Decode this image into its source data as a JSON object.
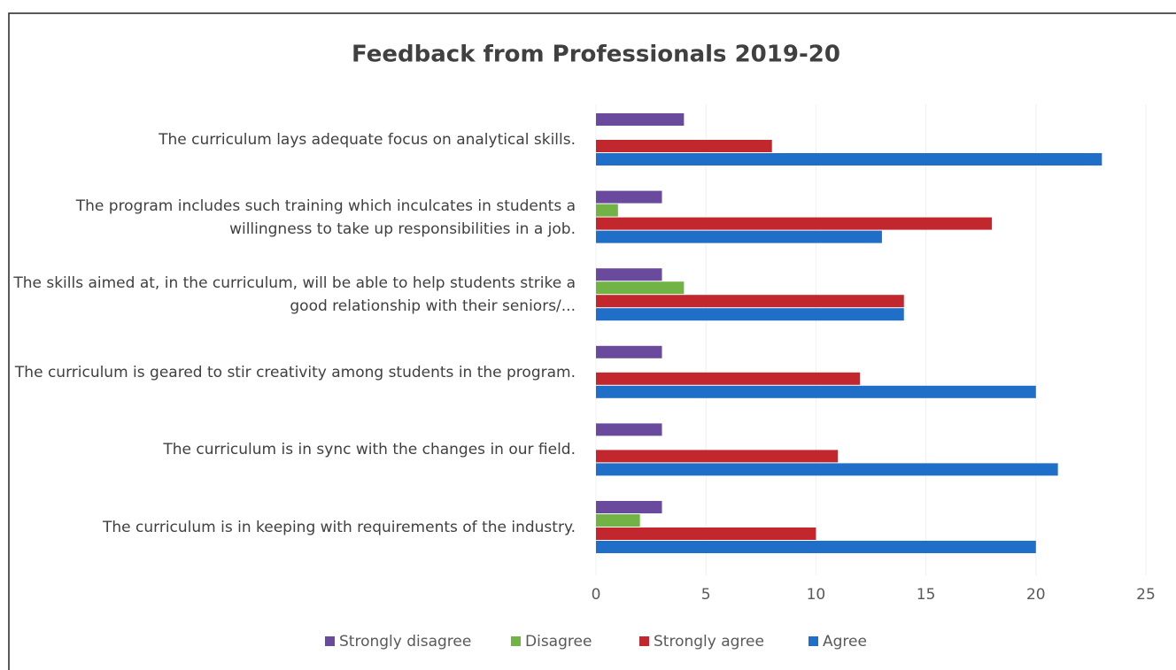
{
  "chart_data": {
    "type": "hbar",
    "title": "Feedback from Professionals 2019-20",
    "categories": [
      "The curriculum lays adequate focus on analytical skills.",
      "The program includes such training which inculcates in students a willingness to take up responsibilities in a job.",
      "The skills aimed at, in the curriculum, will be able to help students strike a good relationship with their seniors/...",
      "The curriculum is geared to stir creativity among students in the program.",
      "The curriculum is in sync with the changes in our field.",
      "The curriculum is in keeping with requirements of the industry."
    ],
    "series": [
      {
        "name": "Strongly disagree",
        "color": "#6a4a9c",
        "values": [
          4,
          3,
          3,
          3,
          3,
          3
        ]
      },
      {
        "name": "Disagree",
        "color": "#71b344",
        "values": [
          0,
          1,
          4,
          0,
          0,
          2
        ]
      },
      {
        "name": "Strongly agree",
        "color": "#c1272d",
        "values": [
          8,
          18,
          14,
          12,
          11,
          10
        ]
      },
      {
        "name": "Agree",
        "color": "#1f6ec8",
        "values": [
          23,
          13,
          14,
          20,
          21,
          20
        ]
      }
    ],
    "xlim": [
      0,
      25
    ],
    "xticks": [
      0,
      5,
      10,
      15,
      20,
      25
    ],
    "grid": true,
    "legend": "bottom"
  }
}
